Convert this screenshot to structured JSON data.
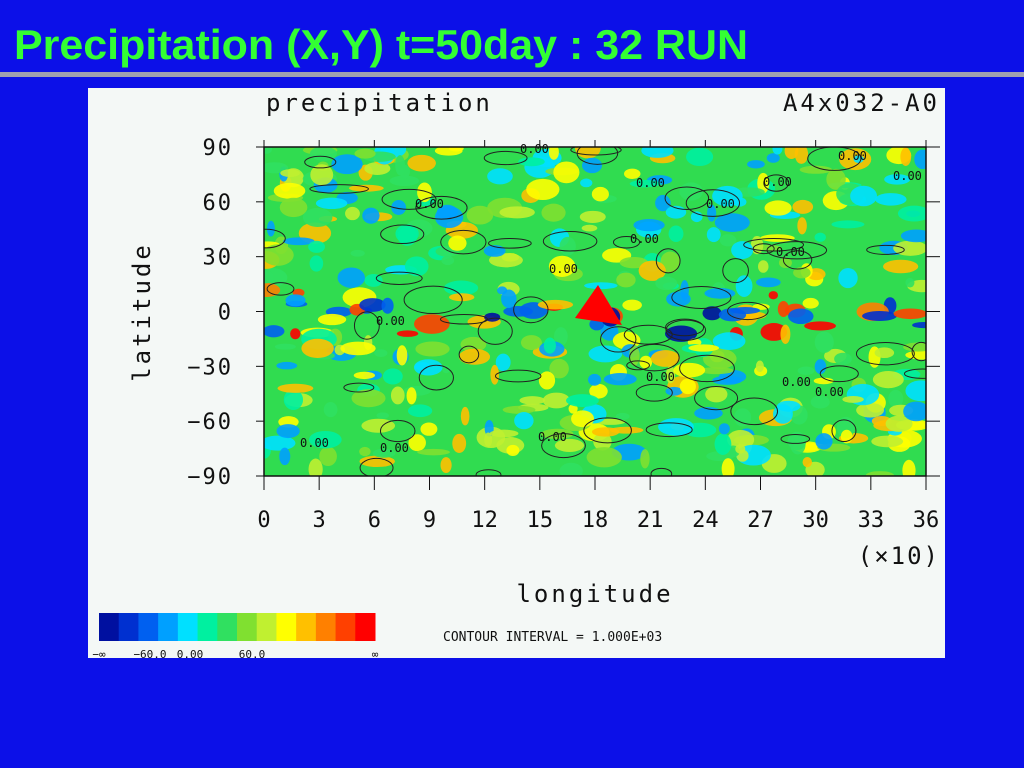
{
  "slide": {
    "title": "Precipitation (X,Y) t=50day : 32 RUN"
  },
  "plot": {
    "title": "precipitation",
    "run": "A4x032-A0",
    "y_label": "latitude",
    "x_label": "longitude",
    "x_scale": "(×10)",
    "y_ticks": [
      "90",
      "60",
      "30",
      "0",
      "−30",
      "−60",
      "−90"
    ],
    "x_ticks": [
      "0",
      "3",
      "6",
      "9",
      "12",
      "15",
      "18",
      "21",
      "24",
      "27",
      "30",
      "33",
      "36"
    ],
    "contour_labels": [
      "0.00",
      "0.00",
      "0.00",
      "0.00",
      "0.00",
      "0.00",
      "0.00",
      "0.00",
      "0.00",
      "0.00",
      "0.00",
      "0.00",
      "0.00",
      "0.00",
      "0.00",
      "0.00",
      "0.00"
    ],
    "contour_interval": "CONTOUR INTERVAL = 1.000E+03",
    "colorbar": {
      "colors": [
        "#0010a0",
        "#0030d0",
        "#0060f0",
        "#00a0ff",
        "#00e0ff",
        "#00f0a0",
        "#30e060",
        "#80e030",
        "#c0f030",
        "#ffff00",
        "#ffc000",
        "#ff8000",
        "#ff4000",
        "#ff0000"
      ],
      "labels": [
        "−∞",
        "−60.0",
        "0.00",
        "60.0",
        "∞"
      ]
    }
  }
}
